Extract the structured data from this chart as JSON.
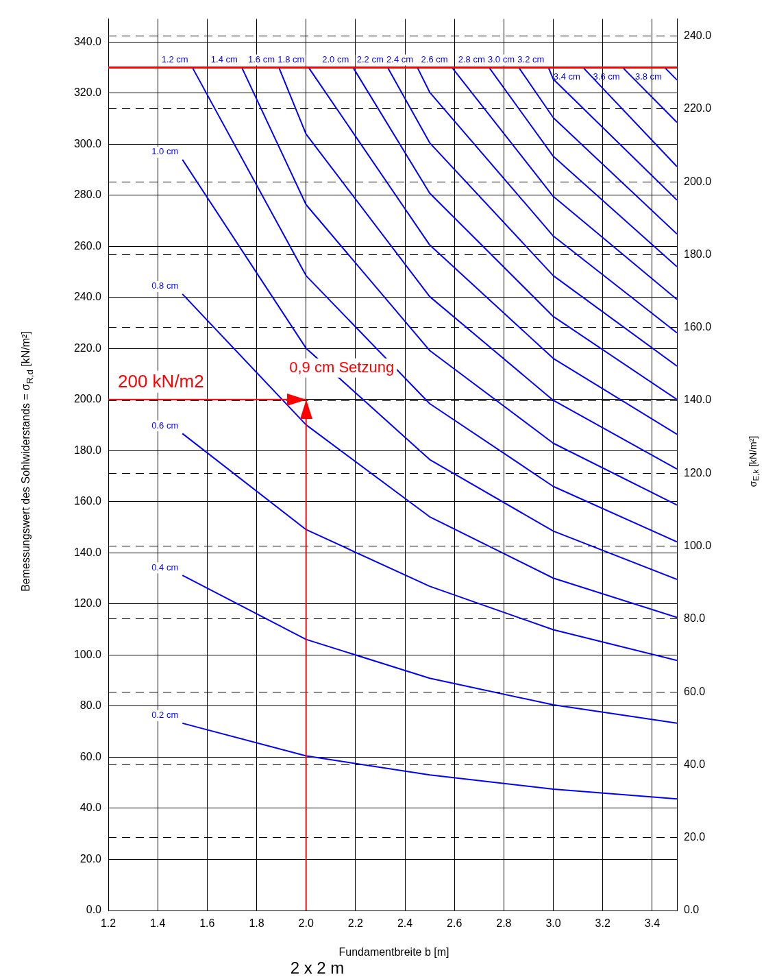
{
  "chart_data": {
    "type": "line",
    "xlabel": "Fundamentbreite b [m]",
    "ylabel": "Bemessungswert des Sohlwiderstands = σ$_{R,d}$ [kN/m²]",
    "y2label": "σ$_{E,k}$ [kN/m²]",
    "xlim": [
      1.2,
      3.5
    ],
    "xticks": [
      1.2,
      1.4,
      1.6,
      1.8,
      {
        "value": 2.0,
        "label": "2.0"
      },
      2.2,
      2.4,
      2.6,
      2.8,
      {
        "value": 3.0,
        "label": "3.0"
      },
      3.2,
      3.4
    ],
    "ylim": [
      0,
      349
    ],
    "yticks": [
      {
        "value": 0,
        "label": "0.0"
      },
      {
        "value": 20,
        "label": "20.0"
      },
      {
        "value": 40,
        "label": "40.0"
      },
      {
        "value": 60,
        "label": "60.0"
      },
      {
        "value": 80,
        "label": "80.0"
      },
      {
        "value": 100,
        "label": "100.0"
      },
      {
        "value": 120,
        "label": "120.0"
      },
      {
        "value": 140,
        "label": "140.0"
      },
      {
        "value": 160,
        "label": "160.0"
      },
      {
        "value": 180,
        "label": "180.0"
      },
      {
        "value": 200,
        "label": "200.0"
      },
      {
        "value": 220,
        "label": "220.0"
      },
      {
        "value": 240,
        "label": "240.0"
      },
      {
        "value": 260,
        "label": "260.0"
      },
      {
        "value": 280,
        "label": "280.0"
      },
      {
        "value": 300,
        "label": "300.0"
      },
      {
        "value": 320,
        "label": "320.0"
      },
      {
        "value": 340,
        "label": "340.0"
      }
    ],
    "y2lim": [
      0,
      244.7
    ],
    "y2ticks": [
      {
        "value": 0,
        "label": "0.0"
      },
      {
        "value": 20,
        "label": "20.0"
      },
      {
        "value": 40,
        "label": "40.0"
      },
      {
        "value": 60,
        "label": "60.0"
      },
      {
        "value": 80,
        "label": "80.0"
      },
      {
        "value": 100,
        "label": "100.0"
      },
      {
        "value": 120,
        "label": "120.0"
      },
      {
        "value": 140,
        "label": "140.0"
      },
      {
        "value": 160,
        "label": "160.0"
      },
      {
        "value": 180,
        "label": "180.0"
      },
      {
        "value": 200,
        "label": "200.0"
      },
      {
        "value": 220,
        "label": "220.0"
      },
      {
        "value": 240,
        "label": "240.0"
      }
    ],
    "grid": true,
    "legend": false,
    "series": [
      {
        "name": "0.2 cm",
        "color": "#0000ff",
        "x": [
          1.5,
          2.0,
          2.5,
          3.0,
          3.5
        ],
        "values": [
          73.3,
          60.5,
          53.1,
          47.5,
          43.7
        ]
      },
      {
        "name": "0.4 cm",
        "color": "#0000ff",
        "x": [
          1.5,
          2.0,
          2.5,
          3.0,
          3.5
        ],
        "values": [
          131.2,
          106.1,
          90.9,
          80.5,
          73.3
        ]
      },
      {
        "name": "0.6 cm",
        "color": "#0000ff",
        "x": [
          1.5,
          2.0,
          2.5,
          3.0,
          3.5
        ],
        "values": [
          186.7,
          149.1,
          126.9,
          109.9,
          97.9
        ]
      },
      {
        "name": "0.8 cm",
        "color": "#0000ff",
        "x": [
          1.5,
          2.0,
          2.5,
          3.0,
          3.5
        ],
        "values": [
          241.3,
          190.1,
          154.1,
          130.1,
          114.7
        ]
      },
      {
        "name": "1.0 cm",
        "color": "#0000ff",
        "x": [
          1.5,
          2.0,
          2.5,
          3.0,
          3.5
        ],
        "values": [
          293.9,
          220.1,
          176.5,
          148.5,
          129.6
        ]
      },
      {
        "name": "1.2 cm",
        "color": "#0000ff",
        "x": [
          1.54,
          2.0,
          2.5,
          3.0,
          3.5
        ],
        "values": [
          330,
          248.5,
          198.4,
          166.0,
          144.3
        ]
      },
      {
        "name": "1.4 cm",
        "color": "#0000ff",
        "x": [
          1.74,
          2.0,
          2.5,
          3.0,
          3.5
        ],
        "values": [
          330,
          276.3,
          219.2,
          182.9,
          158.7
        ]
      },
      {
        "name": "1.6 cm",
        "color": "#0000ff",
        "x": [
          1.89,
          2.0,
          2.5,
          3.0,
          3.5
        ],
        "values": [
          330,
          303.9,
          240.3,
          199.7,
          172.8
        ]
      },
      {
        "name": "1.8 cm",
        "color": "#0000ff",
        "x": [
          2.01,
          2.5,
          3.0,
          3.5
        ],
        "values": [
          330,
          260.5,
          216.1,
          186.4
        ]
      },
      {
        "name": "2.0 cm",
        "color": "#0000ff",
        "x": [
          2.19,
          2.5,
          3.0,
          3.5
        ],
        "values": [
          330,
          280.8,
          232.5,
          200.0
        ]
      },
      {
        "name": "2.2 cm",
        "color": "#0000ff",
        "x": [
          2.33,
          2.5,
          3.0,
          3.5
        ],
        "values": [
          330,
          300.5,
          248.5,
          213.1
        ]
      },
      {
        "name": "2.4 cm",
        "color": "#0000ff",
        "x": [
          2.45,
          2.5,
          3.0,
          3.5
        ],
        "values": [
          330,
          320.3,
          264.0,
          226.1
        ]
      },
      {
        "name": "2.6 cm",
        "color": "#0000ff",
        "x": [
          2.59,
          3.0,
          3.5
        ],
        "values": [
          330,
          279.5,
          239.2
        ]
      },
      {
        "name": "2.8 cm",
        "color": "#0000ff",
        "x": [
          2.74,
          3.0,
          3.5
        ],
        "values": [
          330,
          295.2,
          252.0
        ]
      },
      {
        "name": "3.0 cm",
        "color": "#0000ff",
        "x": [
          2.86,
          3.0,
          3.5
        ],
        "values": [
          330,
          310.3,
          264.8
        ]
      },
      {
        "name": "3.2 cm",
        "color": "#0000ff",
        "x": [
          2.98,
          3.0,
          3.5
        ],
        "values": [
          330,
          325.4,
          278.1
        ]
      },
      {
        "name": "3.4 cm",
        "color": "#0000ff",
        "x": [
          3.12,
          3.5
        ],
        "values": [
          330,
          291.2
        ]
      },
      {
        "name": "3.6 cm",
        "color": "#0000ff",
        "x": [
          3.28,
          3.5
        ],
        "values": [
          330,
          308.5
        ]
      },
      {
        "name": "3.8 cm",
        "color": "#0000ff",
        "x": [
          3.45,
          3.5
        ],
        "values": [
          330,
          325.1
        ]
      }
    ],
    "ref_lines": [
      {
        "axis": "y",
        "value": 330,
        "color": "#ff0000"
      },
      {
        "axis": "y",
        "value": 200,
        "label": "200 kN/m2",
        "color": "#ff0000"
      },
      {
        "axis": "x",
        "value": 2.0,
        "label": "0,9 cm Setzung",
        "color": "#ff0000"
      }
    ],
    "annotations": [
      "2 x 2 m"
    ]
  }
}
